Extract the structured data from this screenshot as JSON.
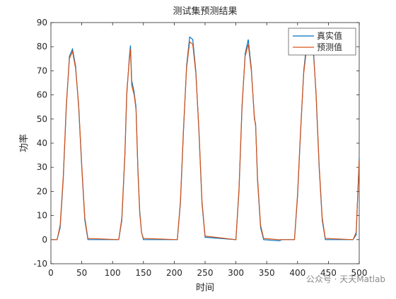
{
  "chart_data": {
    "type": "line",
    "title": "测试集预测结果",
    "xlabel": "时间",
    "ylabel": "功率",
    "x": [
      0,
      10,
      15,
      20,
      25,
      30,
      35,
      40,
      45,
      50,
      55,
      60,
      110,
      115,
      120,
      123,
      127,
      129,
      131,
      135,
      138,
      141,
      144,
      147,
      150,
      205,
      210,
      215,
      220,
      225,
      230,
      235,
      240,
      245,
      250,
      300,
      305,
      310,
      315,
      320,
      325,
      330,
      332,
      335,
      340,
      345,
      370,
      375,
      395,
      400,
      405,
      410,
      415,
      420,
      425,
      430,
      435,
      440,
      445,
      490,
      495,
      500
    ],
    "series": [
      {
        "name": "真实值",
        "color": "#0072BD",
        "values": [
          0,
          0,
          5,
          25,
          55,
          76,
          79,
          72,
          55,
          30,
          8,
          0,
          0,
          8,
          35,
          60,
          75,
          80.5,
          66,
          61,
          55,
          30,
          12,
          3,
          0,
          0,
          15,
          45,
          72,
          84,
          83,
          70,
          45,
          15,
          1,
          0,
          20,
          55,
          77,
          83,
          71,
          50,
          48,
          25,
          5,
          0,
          -0.5,
          0,
          0,
          18,
          45,
          70,
          82,
          86,
          82,
          60,
          30,
          8,
          0,
          0,
          2,
          34
        ]
      },
      {
        "name": "预测值",
        "color": "#D95319",
        "values": [
          0,
          0,
          6,
          26,
          56,
          75,
          78,
          71,
          56,
          31,
          9,
          0.5,
          0,
          9,
          36,
          61,
          74,
          79,
          64,
          60,
          54,
          29,
          11,
          3,
          0.5,
          0,
          16,
          46,
          71,
          82,
          81,
          69,
          46,
          16,
          1.5,
          0,
          21,
          56,
          76,
          81,
          70,
          51,
          47,
          26,
          6,
          0.5,
          0,
          0,
          0,
          19,
          46,
          69,
          80,
          84,
          80,
          61,
          31,
          9,
          0.5,
          0,
          3,
          33
        ]
      }
    ],
    "xlim": [
      0,
      500
    ],
    "xticks": [
      0,
      50,
      100,
      150,
      200,
      250,
      300,
      350,
      400,
      450,
      500
    ],
    "ylim": [
      -10,
      90
    ],
    "yticks": [
      -10,
      0,
      10,
      20,
      30,
      40,
      50,
      60,
      70,
      80,
      90
    ],
    "grid": false,
    "legend": "upper right",
    "watermark": "公众号 · 天天Matlab"
  }
}
